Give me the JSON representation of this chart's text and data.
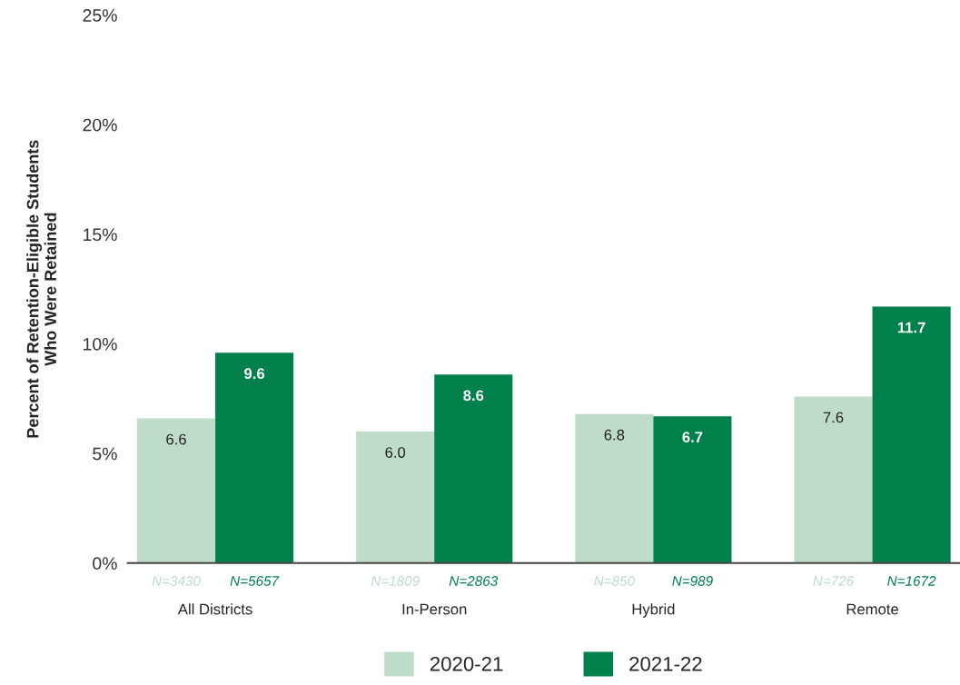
{
  "chart_data": {
    "type": "bar",
    "ylabel": "Percent of Retention-Eligible Students\nWho Were Retained",
    "categories": [
      "All Districts",
      "In-Person",
      "Hybrid",
      "Remote"
    ],
    "series": [
      {
        "name": "2020-21",
        "color": "#bfdccb",
        "values": [
          6.6,
          6.0,
          6.8,
          7.6
        ],
        "value_labels": [
          "6.6",
          "6.0",
          "6.8",
          "7.6"
        ]
      },
      {
        "name": "2021-22",
        "color": "#00804a",
        "values": [
          9.6,
          8.6,
          6.7,
          11.7
        ],
        "value_labels": [
          "9.6",
          "8.6",
          "6.7",
          "11.7"
        ]
      }
    ],
    "ylim": [
      0,
      25
    ],
    "yticks": [
      {
        "value": 0,
        "label": "0%"
      },
      {
        "value": 5,
        "label": "5%"
      },
      {
        "value": 10,
        "label": "10%"
      },
      {
        "value": 15,
        "label": "15%"
      },
      {
        "value": 20,
        "label": "20%"
      },
      {
        "value": 25,
        "label": "25%"
      }
    ],
    "grid": false,
    "legend": "bottom",
    "annotations": [
      {
        "text": "N=3430",
        "x": "All Districts",
        "y": 0
      },
      {
        "text": "N=5657",
        "x": "All Districts",
        "y": 0
      },
      {
        "text": "N=1809",
        "x": "In-Person",
        "y": 0
      },
      {
        "text": "N=2863",
        "x": "In-Person",
        "y": 0
      },
      {
        "text": "N=850",
        "x": "Hybrid",
        "y": 0
      },
      {
        "text": "N=989",
        "x": "Hybrid",
        "y": 0
      },
      {
        "text": "N=726",
        "x": "Remote",
        "y": 0
      },
      {
        "text": "N=1672",
        "x": "Remote",
        "y": 0
      }
    ]
  }
}
